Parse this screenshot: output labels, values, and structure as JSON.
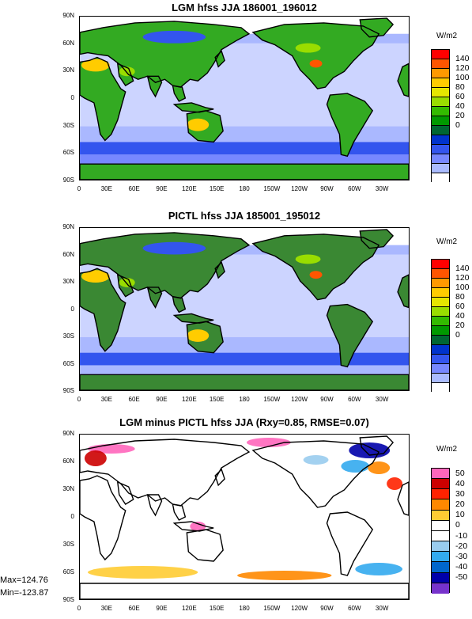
{
  "panels": [
    {
      "id": "lgm",
      "title": "LGM hfss JJA 186001_196012",
      "unit": "W/m2",
      "colorbar": {
        "labels": [
          "140",
          "120",
          "100",
          "80",
          "60",
          "40",
          "20",
          "0"
        ],
        "colors": [
          "#ff0000",
          "#ff5500",
          "#ff9900",
          "#ffcc00",
          "#e6e600",
          "#99dd00",
          "#33bb00",
          "#009900",
          "#006633",
          "#0033cc",
          "#3355ee",
          "#7788ff",
          "#aabbff",
          "#ffffff"
        ]
      }
    },
    {
      "id": "pictl",
      "title": "PICTL hfss JJA 185001_195012",
      "unit": "W/m2",
      "colorbar": {
        "labels": [
          "140",
          "120",
          "100",
          "80",
          "60",
          "40",
          "20",
          "0"
        ],
        "colors": [
          "#ff0000",
          "#ff5500",
          "#ff9900",
          "#ffcc00",
          "#e6e600",
          "#99dd00",
          "#33bb00",
          "#009900",
          "#006633",
          "#0033cc",
          "#3355ee",
          "#7788ff",
          "#aabbff",
          "#ffffff"
        ]
      }
    },
    {
      "id": "diff",
      "title": "LGM minus PICTL hfss JJA (Rxy=0.85, RMSE=0.07)",
      "unit": "W/m2",
      "colorbar": {
        "labels": [
          "50",
          "40",
          "30",
          "20",
          "10",
          "0",
          "-10",
          "-20",
          "-30",
          "-40",
          "-50"
        ],
        "colors": [
          "#ff66bb",
          "#cc0000",
          "#ff2200",
          "#ff8800",
          "#ffcc33",
          "#ffffff",
          "#ffffff",
          "#99ccee",
          "#33aaee",
          "#0066cc",
          "#0000aa",
          "#7733cc"
        ]
      }
    }
  ],
  "lat_ticks": [
    "90N",
    "60N",
    "30N",
    "0",
    "30S",
    "60S",
    "90S"
  ],
  "lon_ticks": [
    "0",
    "30E",
    "60E",
    "90E",
    "120E",
    "150E",
    "180",
    "150W",
    "120W",
    "90W",
    "60W",
    "30W"
  ],
  "stats": {
    "max": "Max=124.76",
    "min": "Min=-123.87"
  }
}
